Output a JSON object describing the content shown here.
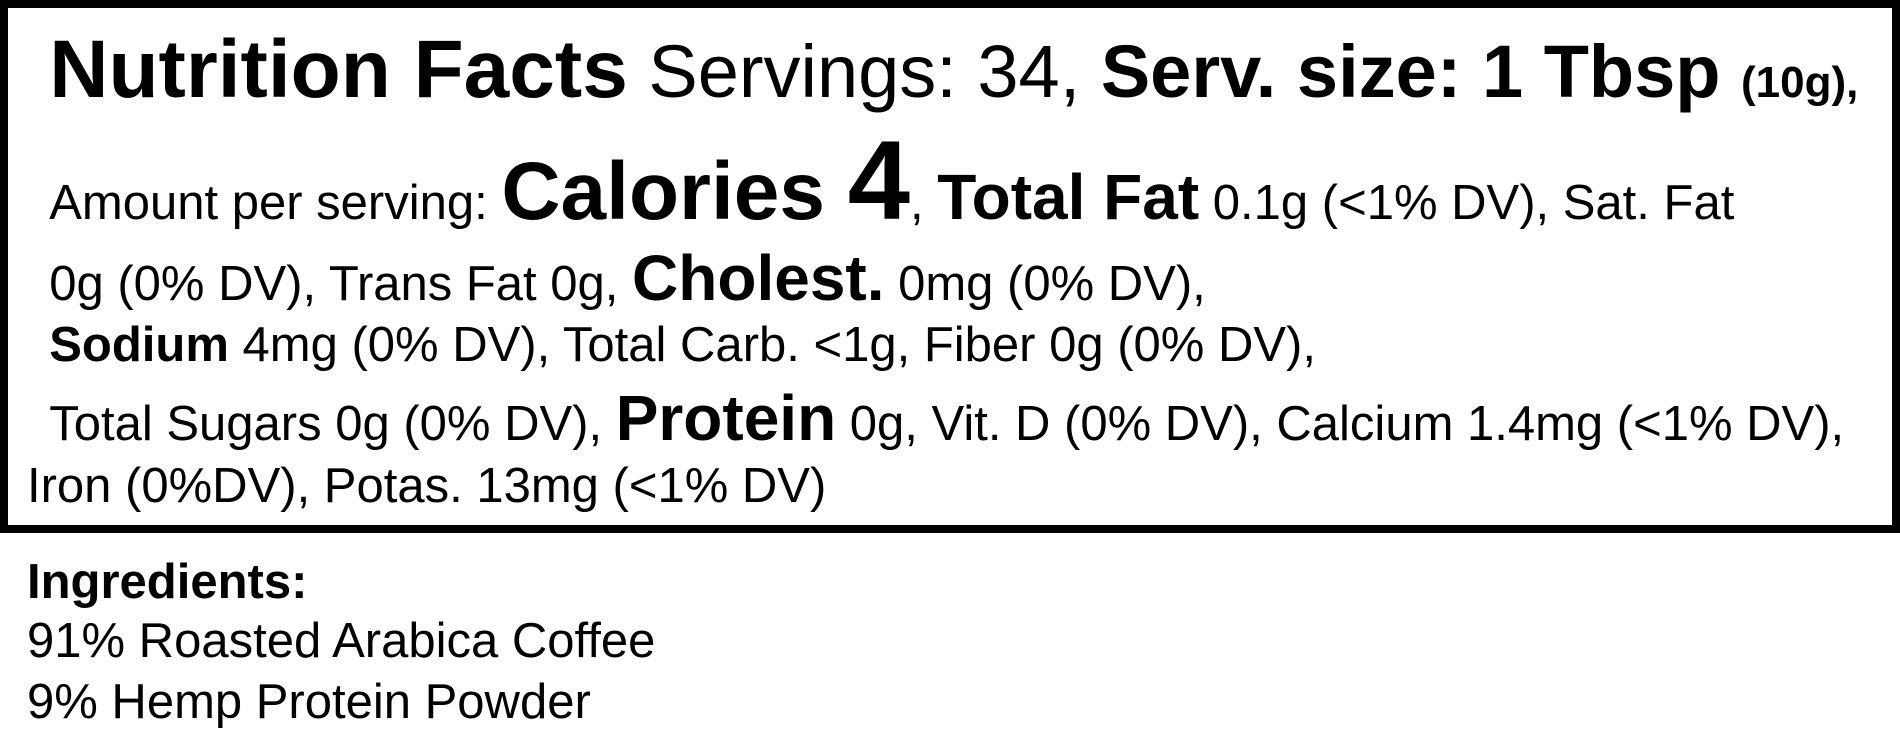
{
  "label": {
    "line1": {
      "title": "Nutrition Facts",
      "servings": " Servings: 34, ",
      "serv_size": "Serv. size: 1 Tbsp ",
      "serv_weight": "(10g),"
    },
    "line2": {
      "amount": "Amount per serving: ",
      "calories_label": "Calories ",
      "calories_value": "4",
      "sep": ", ",
      "total_fat_label": "Total Fat",
      "total_fat_value": " 0.1g (<1% DV), Sat. Fat"
    },
    "line3": {
      "sat_fat_value": "0g (0% DV), Trans Fat 0g, ",
      "cholest_label": "Cholest.",
      "cholest_value": " 0mg (0% DV),"
    },
    "line4": {
      "sodium_label": "Sodium",
      "sodium_rest": " 4mg (0% DV), Total Carb. <1g, Fiber 0g (0% DV),"
    },
    "line5": {
      "sugars": "Total Sugars 0g (0% DV), ",
      "protein_label": "Protein",
      "protein_rest": " 0g, Vit. D (0% DV), Calcium 1.4mg (<1% DV),"
    },
    "line6": "Iron (0%DV), Potas. 13mg (<1% DV)"
  },
  "ingredients": {
    "heading": "Ingredients:",
    "items": [
      "91% Roasted Arabica Coffee",
      "9% Hemp Protein Powder"
    ]
  },
  "colors": {
    "text": "#000000",
    "border": "#000000",
    "background": "#ffffff"
  }
}
